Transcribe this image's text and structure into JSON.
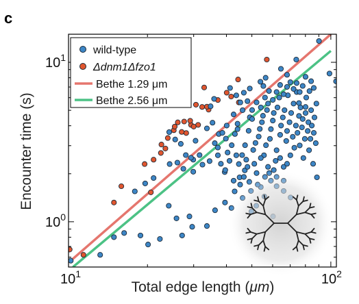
{
  "panel_label": "c",
  "chart_data": {
    "type": "scatter",
    "xlabel": "Total edge length (",
    "xlabel_unit": "μm",
    "xlabel_close": ")",
    "ylabel": "Encounter time (s)",
    "x_scale": "log",
    "y_scale": "log",
    "xlim": [
      10,
      105
    ],
    "ylim": [
      0.52,
      15
    ],
    "x_ticks": [
      {
        "value": 10,
        "mantissa": "10",
        "exponent": "1"
      },
      {
        "value": 100,
        "mantissa": "10",
        "exponent": "2"
      }
    ],
    "y_ticks": [
      {
        "value": 1,
        "mantissa": "10",
        "exponent": "0"
      },
      {
        "value": 10,
        "mantissa": "10",
        "exponent": "1"
      }
    ],
    "grid": false,
    "legend_position": "top-left",
    "colors": {
      "wild_type": "#3d86c6",
      "mutant": "#e0562f",
      "bethe_129": "#e5766e",
      "bethe_256": "#4cc285",
      "marker_edge": "#1d2a38"
    },
    "series": [
      {
        "name": "wild-type",
        "kind": "points",
        "points": [
          [
            10.2,
            0.57
          ],
          [
            13.2,
            0.62
          ],
          [
            14.9,
            0.8
          ],
          [
            16.3,
            0.85
          ],
          [
            18.8,
            0.82
          ],
          [
            20.1,
            0.72
          ],
          [
            22.3,
            0.78
          ],
          [
            24.1,
            1.26
          ],
          [
            25.8,
            1.05
          ],
          [
            27.1,
            0.82
          ],
          [
            28.9,
            1.08
          ],
          [
            29.6,
            0.93
          ],
          [
            33.7,
            0.94
          ],
          [
            36.2,
            1.18
          ],
          [
            39.5,
            1.32
          ],
          [
            41.8,
            1.22
          ],
          [
            43.0,
            1.55
          ],
          [
            46.1,
            1.41
          ],
          [
            49.8,
            1.16
          ],
          [
            52.0,
            1.26
          ],
          [
            55.8,
            1.44
          ],
          [
            60.2,
            1.08
          ],
          [
            62.1,
            1.67
          ],
          [
            66.1,
            1.56
          ],
          [
            70.2,
            1.42
          ],
          [
            88.5,
            1.9
          ],
          [
            17.9,
            1.55
          ],
          [
            19.6,
            1.74
          ],
          [
            21.1,
            1.88
          ],
          [
            24.3,
            2.3
          ],
          [
            26.0,
            2.35
          ],
          [
            27.4,
            2.15
          ],
          [
            29.9,
            2.45
          ],
          [
            31.6,
            2.62
          ],
          [
            32.4,
            2.28
          ],
          [
            34.5,
            2.4
          ],
          [
            37.1,
            2.92
          ],
          [
            39.4,
            2.05
          ],
          [
            44.9,
            1.9
          ],
          [
            47.0,
            2.1
          ],
          [
            48.9,
            1.78
          ],
          [
            24.2,
            3.65
          ],
          [
            25.5,
            3.28
          ],
          [
            26.8,
            3.08
          ],
          [
            28.0,
            2.62
          ],
          [
            29.3,
            2.52
          ],
          [
            30.5,
            3.22
          ],
          [
            33.7,
            3.85
          ],
          [
            35.4,
            4.18
          ],
          [
            37.4,
            3.55
          ],
          [
            34.8,
            5.3
          ],
          [
            35.9,
            5.9
          ],
          [
            29.9,
            2.06
          ],
          [
            41.3,
            6.9
          ],
          [
            43.6,
            6.2
          ],
          [
            45.2,
            5.6
          ],
          [
            46.6,
            6.45
          ],
          [
            49.1,
            6.85
          ],
          [
            53.9,
            7.55
          ],
          [
            55.3,
            7.1
          ],
          [
            56.4,
            8.0
          ],
          [
            64.5,
            9.1
          ],
          [
            68.1,
            8.35
          ],
          [
            73.8,
            10.4
          ],
          [
            90.1,
            13.6
          ],
          [
            98.8,
            8.5
          ],
          [
            104.7,
            7.6
          ],
          [
            75.6,
            5.55
          ],
          [
            80.1,
            5.25
          ],
          [
            82.9,
            6.6
          ],
          [
            58.2,
            2.02
          ],
          [
            54.1,
            1.65
          ],
          [
            39.8,
            3.32
          ],
          [
            40.4,
            2.72
          ],
          [
            41.9,
            3.02
          ],
          [
            43.1,
            3.55
          ],
          [
            44.1,
            4.12
          ],
          [
            44.6,
            2.3
          ],
          [
            45.9,
            2.62
          ],
          [
            47.1,
            3.02
          ],
          [
            47.6,
            2.45
          ],
          [
            48.6,
            3.72
          ],
          [
            49.1,
            4.52
          ],
          [
            50.1,
            5.02
          ],
          [
            50.6,
            2.82
          ],
          [
            51.6,
            3.12
          ],
          [
            52.1,
            2.02
          ],
          [
            53.1,
            3.42
          ],
          [
            53.6,
            3.82
          ],
          [
            54.6,
            4.21
          ],
          [
            55.1,
            4.62
          ],
          [
            55.6,
            2.61
          ],
          [
            56.6,
            3.02
          ],
          [
            57.1,
            5.02
          ],
          [
            57.6,
            5.51
          ],
          [
            58.6,
            3.31
          ],
          [
            59.1,
            3.81
          ],
          [
            60.1,
            4.31
          ],
          [
            60.6,
            4.81
          ],
          [
            61.6,
            2.41
          ],
          [
            62.1,
            2.81
          ],
          [
            62.6,
            5.21
          ],
          [
            63.6,
            6.01
          ],
          [
            64.1,
            3.51
          ],
          [
            64.6,
            4.01
          ],
          [
            65.6,
            4.51
          ],
          [
            66.1,
            2.21
          ],
          [
            66.6,
            5.01
          ],
          [
            67.6,
            3.21
          ],
          [
            68.1,
            3.71
          ],
          [
            68.6,
            6.21
          ],
          [
            69.6,
            4.21
          ],
          [
            70.1,
            2.61
          ],
          [
            70.6,
            4.81
          ],
          [
            71.6,
            3.41
          ],
          [
            72.1,
            5.51
          ],
          [
            72.6,
            2.91
          ],
          [
            73.6,
            4.01
          ],
          [
            74.1,
            6.51
          ],
          [
            74.6,
            3.61
          ],
          [
            75.6,
            4.61
          ],
          [
            76.1,
            3.01
          ],
          [
            76.6,
            5.21
          ],
          [
            77.6,
            3.91
          ],
          [
            78.1,
            4.41
          ],
          [
            78.6,
            2.51
          ],
          [
            79.6,
            3.31
          ],
          [
            80.1,
            4.81
          ],
          [
            80.6,
            6.01
          ],
          [
            81.6,
            3.71
          ],
          [
            82.1,
            4.21
          ],
          [
            82.6,
            2.81
          ],
          [
            83.6,
            3.31
          ],
          [
            84.1,
            5.01
          ],
          [
            84.6,
            4.01
          ],
          [
            85.6,
            2.31
          ],
          [
            86.1,
            3.61
          ],
          [
            86.6,
            4.51
          ],
          [
            87.6,
            3.11
          ],
          [
            88.1,
            5.51
          ],
          [
            39.6,
            2.11
          ],
          [
            41.1,
            2.41
          ],
          [
            42.6,
            1.81
          ],
          [
            43.6,
            2.61
          ],
          [
            45.1,
            1.71
          ],
          [
            46.6,
            1.91
          ],
          [
            48.1,
            2.21
          ],
          [
            49.6,
            1.56
          ],
          [
            51.1,
            2.31
          ],
          [
            52.6,
            1.71
          ],
          [
            54.1,
            2.51
          ],
          [
            56.1,
            1.91
          ],
          [
            57.6,
            2.21
          ],
          [
            59.1,
            1.81
          ],
          [
            60.6,
            2.11
          ],
          [
            62.1,
            1.91
          ],
          [
            64.1,
            2.51
          ],
          [
            66.1,
            1.81
          ],
          [
            68.1,
            2.31
          ],
          [
            44.1,
            3.81
          ],
          [
            50.1,
            4.41
          ],
          [
            52.1,
            5.61
          ],
          [
            54.1,
            5.21
          ],
          [
            56.1,
            6.01
          ],
          [
            58.1,
            6.61
          ],
          [
            60.1,
            5.81
          ],
          [
            62.1,
            6.51
          ],
          [
            64.1,
            7.21
          ],
          [
            66.1,
            6.31
          ],
          [
            68.1,
            7.01
          ],
          [
            70.1,
            7.51
          ],
          [
            72.1,
            6.81
          ],
          [
            74.1,
            7.41
          ],
          [
            76.1,
            6.51
          ],
          [
            78.1,
            7.11
          ],
          [
            80.1,
            8.11
          ],
          [
            84.1,
            7.61
          ],
          [
            86.1,
            6.91
          ],
          [
            48.1,
            5.71
          ],
          [
            46.1,
            5.01
          ],
          [
            42.6,
            4.71
          ],
          [
            40.1,
            4.01
          ],
          [
            38.6,
            3.61
          ],
          [
            37.1,
            2.61
          ],
          [
            36.1,
            3.11
          ],
          [
            38.1,
            2.31
          ]
        ]
      },
      {
        "name": "Δdnm1Δfzo1",
        "kind": "points",
        "points": [
          [
            10.1,
            0.67
          ],
          [
            11.4,
            0.62
          ],
          [
            14.9,
            1.32
          ],
          [
            15.9,
            1.67
          ],
          [
            19.5,
            2.3
          ],
          [
            20.6,
            1.53
          ],
          [
            21.1,
            2.45
          ],
          [
            22.6,
            3.05
          ],
          [
            23.9,
            3.35
          ],
          [
            25.2,
            3.75
          ],
          [
            23.4,
            2.88
          ],
          [
            28.1,
            3.6
          ],
          [
            29.3,
            4.05
          ],
          [
            26.1,
            4.2
          ],
          [
            31.2,
            4.05
          ],
          [
            29.1,
            4.3
          ],
          [
            32.3,
            5.25
          ],
          [
            34.2,
            5.05
          ],
          [
            30.0,
            3.95
          ],
          [
            27.6,
            4.25
          ],
          [
            30.6,
            5.42
          ],
          [
            27.0,
            3.66
          ],
          [
            37.1,
            5.8
          ],
          [
            33.7,
            5.27
          ],
          [
            40.1,
            6.45
          ],
          [
            41.7,
            6.1
          ],
          [
            44.6,
            5.6
          ],
          [
            32.9,
            6.95
          ],
          [
            57.0,
            10.4
          ],
          [
            44.3,
            7.8
          ],
          [
            25.4,
            3.95
          ],
          [
            22.5,
            2.7
          ]
        ]
      },
      {
        "name": "Bethe 1.29 μm",
        "kind": "line",
        "points": [
          [
            10.2,
            0.57
          ],
          [
            100,
            15
          ]
        ]
      },
      {
        "name": "Bethe 2.56 μm",
        "kind": "line",
        "points": [
          [
            10.4,
            0.52
          ],
          [
            100,
            11.8
          ]
        ]
      }
    ]
  }
}
